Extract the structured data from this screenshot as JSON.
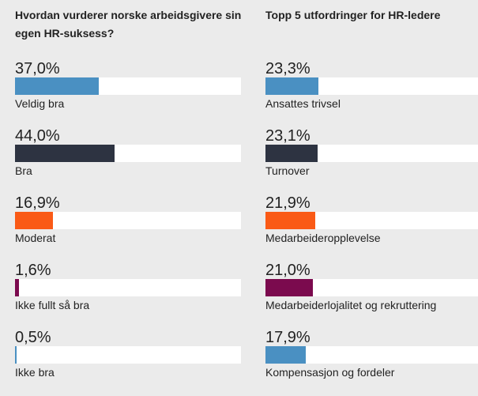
{
  "chart_data": [
    {
      "type": "bar",
      "orientation": "horizontal",
      "title": "Hvordan vurderer norske arbeidsgivere sin egen HR-suksess?",
      "categories": [
        "Veldig bra",
        "Bra",
        "Moderat",
        "Ikke fullt så bra",
        "Ikke bra"
      ],
      "values": [
        37.0,
        44.0,
        16.9,
        1.6,
        0.5
      ],
      "value_labels": [
        "37,0%",
        "44,0%",
        "16,9%",
        "1,6%",
        "0,5%"
      ],
      "colors": [
        "#4a90c2",
        "#2d3341",
        "#fa5a16",
        "#7b0a4e",
        "#4a90c2"
      ],
      "xlim": [
        0,
        100
      ],
      "unit": "%"
    },
    {
      "type": "bar",
      "orientation": "horizontal",
      "title": "Topp 5 utfordringer for HR-ledere",
      "categories": [
        "Ansattes trivsel",
        "Turnover",
        "Medarbeideropplevelse",
        "Medarbeiderlojalitet og rekruttering",
        "Kompensasjon og fordeler"
      ],
      "values": [
        23.3,
        23.1,
        21.9,
        21.0,
        17.9
      ],
      "value_labels": [
        "23,3%",
        "23,1%",
        "21,9%",
        "21,0%",
        "17,9%"
      ],
      "colors": [
        "#4a90c2",
        "#2d3341",
        "#fa5a16",
        "#7b0a4e",
        "#4a90c2"
      ],
      "xlim": [
        0,
        100
      ],
      "unit": "%"
    }
  ]
}
